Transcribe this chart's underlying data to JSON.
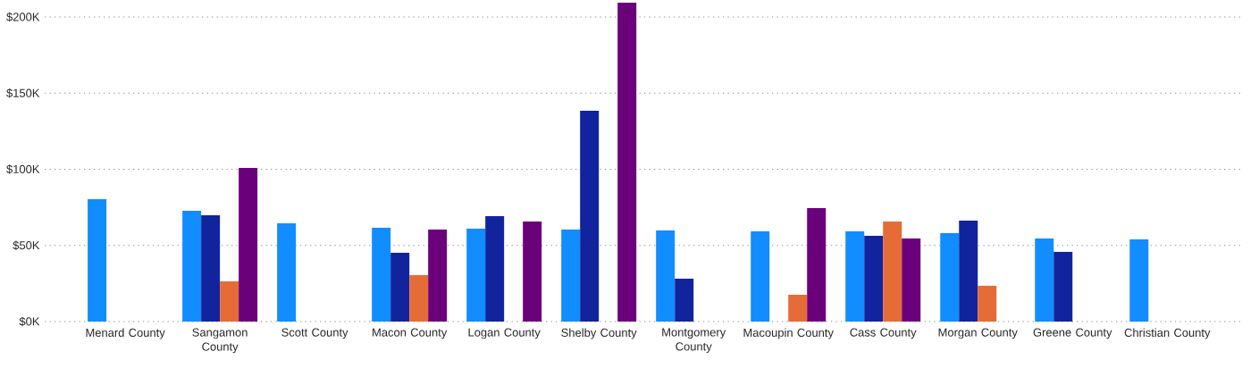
{
  "chart_data": {
    "type": "bar",
    "categories": [
      "Menard County",
      "Sangamon County",
      "Scott County",
      "Macon County",
      "Logan County",
      "Shelby County",
      "Montgomery County",
      "Macoupin County",
      "Cass County",
      "Morgan County",
      "Greene County",
      "Christian County"
    ],
    "series": [
      {
        "color": "#118dff",
        "values": [
          80.4,
          72.7,
          64.5,
          61.6,
          61,
          60.4,
          59.8,
          59.2,
          59.2,
          58,
          54.5,
          54
        ]
      },
      {
        "color": "#12239e",
        "values": [
          null,
          69.8,
          null,
          45.2,
          69.2,
          138.4,
          28.2,
          null,
          56.3,
          66.3,
          45.7,
          null
        ]
      },
      {
        "color": "#e66c37",
        "values": [
          null,
          26.4,
          null,
          30.5,
          null,
          null,
          null,
          17.6,
          65.7,
          23.5,
          null,
          null
        ]
      },
      {
        "color": "#6b007b",
        "values": [
          null,
          100.9,
          null,
          60.4,
          65.7,
          209.4,
          null,
          74.5,
          54.5,
          null,
          null,
          null
        ]
      }
    ],
    "ylim": [
      0,
      210
    ],
    "yticks": [
      {
        "value": 0,
        "label": "$0K"
      },
      {
        "value": 50,
        "label": "$50K"
      },
      {
        "value": 100,
        "label": "$100K"
      },
      {
        "value": 150,
        "label": "$150K"
      },
      {
        "value": 200,
        "label": "$200K"
      }
    ],
    "grid": "y"
  }
}
